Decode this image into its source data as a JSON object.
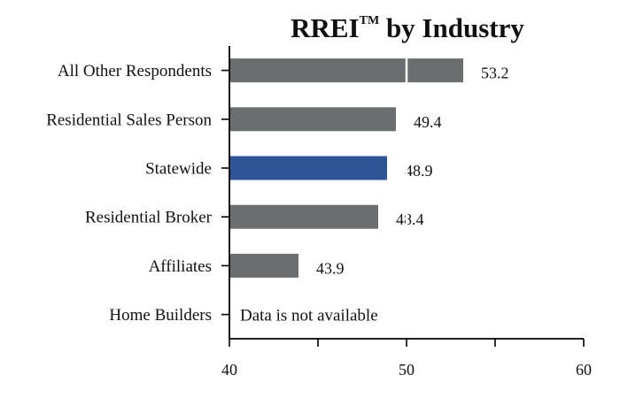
{
  "chart_data": {
    "type": "bar",
    "orientation": "horizontal",
    "title": "RREI",
    "title_mark": "TM",
    "title_suffix": " by Industry",
    "categories": [
      "All Other Respondents",
      "Residential Sales Person",
      "Statewide",
      "Residential Broker",
      "Affiliates",
      "Home Builders"
    ],
    "values": [
      53.2,
      49.4,
      48.9,
      48.4,
      43.9,
      null
    ],
    "value_labels": [
      "53.2",
      "49.4",
      "48.9",
      "48.4",
      "43.9",
      "Data is not available"
    ],
    "highlight_category": "Statewide",
    "colors": {
      "default": "#6b6e6e",
      "highlight": "#2f5597"
    },
    "xlim": [
      40,
      60
    ],
    "xticks": [
      40,
      50,
      60
    ],
    "xlabel": "",
    "ylabel": "",
    "grid": false
  }
}
